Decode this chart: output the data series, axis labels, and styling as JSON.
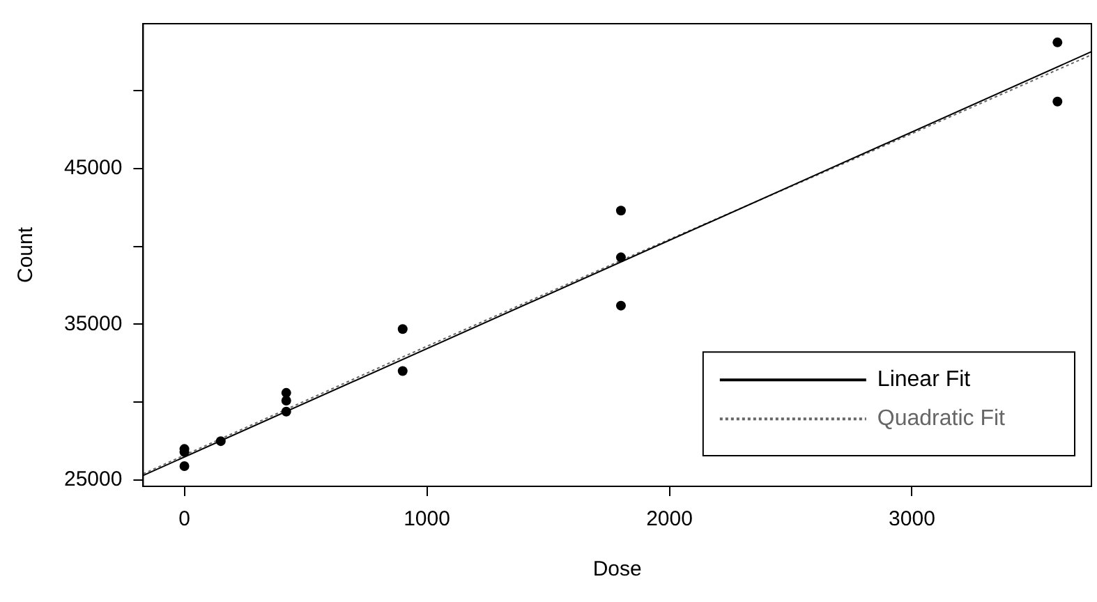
{
  "chart_data": {
    "type": "scatter",
    "xlabel": "Dose",
    "ylabel": "Count",
    "xlim": [
      -170,
      3740
    ],
    "ylim": [
      24600,
      54300
    ],
    "xticks": [
      0,
      1000,
      2000,
      3000
    ],
    "yticks": [
      25000,
      {
        "value": 30000,
        "label": null
      },
      35000,
      {
        "value": 40000,
        "label": null
      },
      45000,
      {
        "value": 50000,
        "label": null
      }
    ],
    "grid": false,
    "legend": "bottom right",
    "marker": "circle",
    "series": [
      {
        "color": "#000000",
        "x": [
          0,
          0,
          0,
          150,
          420,
          420,
          420,
          900,
          900,
          1800,
          1800,
          1800,
          3600,
          3600
        ],
        "values": [
          27000,
          26800,
          25900,
          27500,
          30600,
          30100,
          29400,
          34700,
          32000,
          42300,
          39300,
          36200,
          53100,
          49300
        ]
      },
      {
        "type": "line",
        "name": "Linear Fit",
        "color": "#000000",
        "line_style": "solid",
        "marker": "none",
        "x": [
          -170,
          3740
        ],
        "values": [
          25300,
          52500
        ]
      },
      {
        "type": "line",
        "name": "Quadratic Fit",
        "color": "#666666",
        "line_style": "dotted",
        "marker": "none",
        "x": [
          -170,
          0,
          900,
          1800,
          2700,
          3740
        ],
        "values": [
          25400,
          26600,
          32900,
          39100,
          45200,
          52300
        ]
      }
    ]
  }
}
